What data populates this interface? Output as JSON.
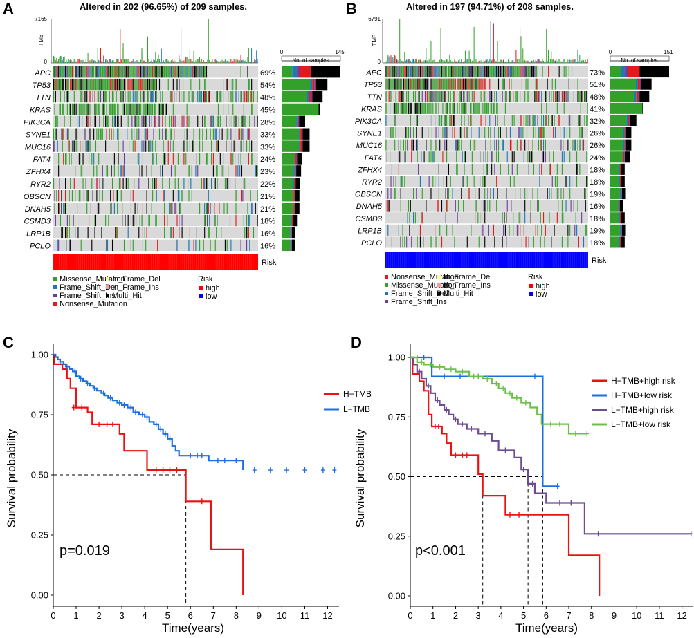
{
  "colors": {
    "Missense_Mutation": "#33a02c",
    "Frame_Shift_Del": "#1f78b4",
    "Frame_Shift_Ins": "#6a3d9a",
    "Nonsense_Mutation": "#e31a1c",
    "In_Frame_Del": "#ffff99",
    "In_Frame_Ins": "#fb9a99",
    "Multi_Hit": "#000000",
    "background": "#d9d9d9",
    "high": "#ff0000",
    "low": "#0000ff"
  },
  "chart_data": [
    {
      "type": "heatmap",
      "panel": "A",
      "title": "Altered in 202 (96.65%) of 209 samples.",
      "tmb_label": "TMB",
      "tmb_ylim": [
        0,
        7165
      ],
      "tmb_ticks": [
        "7165",
        "0"
      ],
      "samples_ticks": [
        "0",
        "145"
      ],
      "samples_label": "No. of samples",
      "risk_label": "Risk",
      "risk_group": "high",
      "genes": [
        "APC",
        "TP53",
        "TTN",
        "KRAS",
        "PIK3CA",
        "SYNE1",
        "MUC16",
        "FAT4",
        "ZFHX4",
        "RYR2",
        "OBSCN",
        "DNAH5",
        "CSMD3",
        "LRP1B",
        "PCLO"
      ],
      "percentages": [
        "69%",
        "54%",
        "48%",
        "45%",
        "28%",
        "33%",
        "33%",
        "24%",
        "23%",
        "22%",
        "21%",
        "21%",
        "18%",
        "16%",
        "16%"
      ],
      "sample_counts": [
        145,
        113,
        101,
        94,
        58,
        69,
        69,
        51,
        48,
        46,
        44,
        44,
        38,
        34,
        34
      ],
      "legend_title": "Risk",
      "legend_types": [
        "Missense_Mutation",
        "Frame_Shift_Del",
        "Frame_Shift_Ins",
        "Nonsense_Mutation",
        "In_Frame_Del",
        "In_Frame_Ins",
        "Multi_Hit"
      ],
      "legend_risk": [
        "high",
        "low"
      ]
    },
    {
      "type": "heatmap",
      "panel": "B",
      "title": "Altered in 197 (94.71%) of 208 samples.",
      "tmb_label": "TMB",
      "tmb_ylim": [
        0,
        6791
      ],
      "tmb_ticks": [
        "6791",
        "0"
      ],
      "samples_ticks": [
        "0",
        "151"
      ],
      "samples_label": "No. of samples",
      "risk_label": "Risk",
      "risk_group": "low",
      "genes": [
        "APC",
        "TP53",
        "TTN",
        "KRAS",
        "PIK3CA",
        "SYNE1",
        "MUC16",
        "FAT4",
        "ZFHX4",
        "RYR2",
        "OBSCN",
        "DNAH5",
        "CSMD3",
        "LRP1B",
        "PCLO"
      ],
      "percentages": [
        "73%",
        "51%",
        "48%",
        "41%",
        "32%",
        "26%",
        "26%",
        "24%",
        "18%",
        "18%",
        "19%",
        "16%",
        "18%",
        "19%",
        "18%"
      ],
      "sample_counts": [
        151,
        106,
        100,
        85,
        67,
        54,
        54,
        50,
        37,
        37,
        40,
        33,
        37,
        40,
        37
      ],
      "legend_title": "Risk",
      "legend_types": [
        "Nonsense_Mutation",
        "Missense_Mutation",
        "Frame_Shift_Del",
        "Frame_Shift_Ins",
        "In_Frame_Del",
        "In_Frame_Ins",
        "Multi_Hit"
      ],
      "legend_risk": [
        "high",
        "low"
      ]
    },
    {
      "type": "line",
      "panel": "C",
      "xlabel": "Time(years)",
      "ylabel": "Survival probability",
      "xlim": [
        0,
        12.5
      ],
      "ylim": [
        0,
        1
      ],
      "xticks": [
        0,
        1,
        2,
        3,
        4,
        5,
        6,
        7,
        8,
        9,
        10,
        11,
        12
      ],
      "yticks": [
        "0.00",
        "0.25",
        "0.50",
        "0.75",
        "1.00"
      ],
      "annotation": "p=0.019",
      "median_line": {
        "y": 0.5,
        "x": 5.8
      },
      "series": [
        {
          "name": "H−TMB",
          "color": "#ee1111",
          "steps": [
            [
              0,
              1.0
            ],
            [
              0.05,
              0.96
            ],
            [
              0.4,
              0.94
            ],
            [
              0.6,
              0.9
            ],
            [
              0.75,
              0.86
            ],
            [
              1.0,
              0.78
            ],
            [
              1.5,
              0.76
            ],
            [
              1.7,
              0.71
            ],
            [
              2.9,
              0.67
            ],
            [
              3.1,
              0.6
            ],
            [
              4.1,
              0.52
            ],
            [
              5.8,
              0.39
            ],
            [
              6.9,
              0.19
            ],
            [
              8.3,
              0.0
            ]
          ],
          "censor": [
            [
              0.9,
              0.78
            ],
            [
              1.25,
              0.78
            ],
            [
              2.0,
              0.71
            ],
            [
              2.35,
              0.71
            ],
            [
              2.6,
              0.71
            ],
            [
              4.5,
              0.52
            ],
            [
              4.8,
              0.52
            ],
            [
              5.1,
              0.52
            ],
            [
              5.4,
              0.52
            ],
            [
              6.5,
              0.39
            ]
          ]
        },
        {
          "name": "L−TMB",
          "color": "#1b6fe0",
          "steps": [
            [
              0,
              1.0
            ],
            [
              0.1,
              0.99
            ],
            [
              0.2,
              0.98
            ],
            [
              0.3,
              0.97
            ],
            [
              0.45,
              0.96
            ],
            [
              0.55,
              0.95
            ],
            [
              0.7,
              0.94
            ],
            [
              0.85,
              0.93
            ],
            [
              1.0,
              0.91
            ],
            [
              1.15,
              0.9
            ],
            [
              1.3,
              0.89
            ],
            [
              1.45,
              0.88
            ],
            [
              1.6,
              0.87
            ],
            [
              1.75,
              0.86
            ],
            [
              1.9,
              0.85
            ],
            [
              2.1,
              0.84
            ],
            [
              2.25,
              0.83
            ],
            [
              2.4,
              0.82
            ],
            [
              2.6,
              0.81
            ],
            [
              2.8,
              0.8
            ],
            [
              3.0,
              0.79
            ],
            [
              3.25,
              0.78
            ],
            [
              3.5,
              0.76
            ],
            [
              3.75,
              0.75
            ],
            [
              4.0,
              0.74
            ],
            [
              4.2,
              0.72
            ],
            [
              4.4,
              0.71
            ],
            [
              4.6,
              0.69
            ],
            [
              4.8,
              0.67
            ],
            [
              5.0,
              0.65
            ],
            [
              5.2,
              0.62
            ],
            [
              5.35,
              0.6
            ],
            [
              5.5,
              0.58
            ],
            [
              6.8,
              0.56
            ],
            [
              8.3,
              0.52
            ]
          ],
          "censor": [
            [
              0.3,
              0.97
            ],
            [
              0.6,
              0.95
            ],
            [
              0.95,
              0.93
            ],
            [
              1.2,
              0.9
            ],
            [
              1.5,
              0.88
            ],
            [
              1.8,
              0.86
            ],
            [
              2.2,
              0.84
            ],
            [
              2.5,
              0.82
            ],
            [
              2.9,
              0.8
            ],
            [
              3.1,
              0.79
            ],
            [
              3.4,
              0.78
            ],
            [
              3.6,
              0.76
            ],
            [
              3.9,
              0.75
            ],
            [
              4.1,
              0.74
            ],
            [
              4.5,
              0.71
            ],
            [
              4.7,
              0.69
            ],
            [
              4.9,
              0.67
            ],
            [
              5.1,
              0.65
            ],
            [
              6.0,
              0.58
            ],
            [
              6.3,
              0.58
            ],
            [
              6.5,
              0.58
            ],
            [
              7.2,
              0.56
            ],
            [
              7.5,
              0.56
            ],
            [
              8.0,
              0.56
            ],
            [
              8.8,
              0.52
            ],
            [
              9.5,
              0.52
            ],
            [
              10.2,
              0.52
            ],
            [
              11.0,
              0.52
            ],
            [
              11.8,
              0.52
            ],
            [
              12.3,
              0.52
            ]
          ]
        }
      ]
    },
    {
      "type": "line",
      "panel": "D",
      "xlabel": "Time(years)",
      "ylabel": "Survival probability",
      "xlim": [
        0,
        12.5
      ],
      "ylim": [
        0,
        1
      ],
      "xticks": [
        0,
        1,
        2,
        3,
        4,
        5,
        6,
        7,
        8,
        9,
        10,
        11,
        12
      ],
      "yticks": [
        "0.00",
        "0.25",
        "0.50",
        "0.75",
        "1.00"
      ],
      "annotation": "p<0.001",
      "median_lines": [
        {
          "y": 0.5,
          "x": 3.2
        },
        {
          "y": 0.5,
          "x": 5.2
        },
        {
          "y": 0.5,
          "x": 5.85
        }
      ],
      "series": [
        {
          "name": "H−TMB+high risk",
          "color": "#ee1111",
          "steps": [
            [
              0,
              1.0
            ],
            [
              0.1,
              0.93
            ],
            [
              0.4,
              0.9
            ],
            [
              0.6,
              0.86
            ],
            [
              0.8,
              0.76
            ],
            [
              0.95,
              0.71
            ],
            [
              1.4,
              0.68
            ],
            [
              1.6,
              0.64
            ],
            [
              1.8,
              0.59
            ],
            [
              3.0,
              0.51
            ],
            [
              3.2,
              0.42
            ],
            [
              4.2,
              0.34
            ],
            [
              5.85,
              0.34
            ],
            [
              7.0,
              0.17
            ],
            [
              8.35,
              0.0
            ]
          ],
          "censor": [
            [
              1.1,
              0.71
            ],
            [
              1.25,
              0.71
            ],
            [
              2.0,
              0.59
            ],
            [
              2.3,
              0.59
            ],
            [
              2.5,
              0.59
            ],
            [
              4.4,
              0.34
            ],
            [
              4.8,
              0.34
            ]
          ]
        },
        {
          "name": "H−TMB+low risk",
          "color": "#1b6fe0",
          "steps": [
            [
              0,
              1.0
            ],
            [
              0.95,
              0.92
            ],
            [
              5.85,
              0.46
            ],
            [
              6.5,
              0.46
            ]
          ],
          "censor": [
            [
              0.3,
              1.0
            ],
            [
              0.6,
              1.0
            ],
            [
              1.5,
              0.92
            ],
            [
              2.2,
              0.92
            ],
            [
              3.0,
              0.92
            ],
            [
              5.5,
              0.92
            ],
            [
              6.5,
              0.46
            ]
          ]
        },
        {
          "name": "L−TMB+high risk",
          "color": "#6a4c93",
          "steps": [
            [
              0,
              1.0
            ],
            [
              0.15,
              0.97
            ],
            [
              0.3,
              0.94
            ],
            [
              0.5,
              0.91
            ],
            [
              0.7,
              0.88
            ],
            [
              0.9,
              0.85
            ],
            [
              1.1,
              0.82
            ],
            [
              1.3,
              0.8
            ],
            [
              1.5,
              0.78
            ],
            [
              1.7,
              0.76
            ],
            [
              1.9,
              0.74
            ],
            [
              2.1,
              0.72
            ],
            [
              2.5,
              0.7
            ],
            [
              3.0,
              0.68
            ],
            [
              3.6,
              0.65
            ],
            [
              3.9,
              0.61
            ],
            [
              4.6,
              0.58
            ],
            [
              4.9,
              0.53
            ],
            [
              5.2,
              0.47
            ],
            [
              5.5,
              0.43
            ],
            [
              6.0,
              0.39
            ],
            [
              7.7,
              0.26
            ],
            [
              12.4,
              0.26
            ]
          ],
          "censor": [
            [
              0.4,
              0.94
            ],
            [
              0.8,
              0.88
            ],
            [
              1.2,
              0.82
            ],
            [
              1.6,
              0.78
            ],
            [
              2.0,
              0.74
            ],
            [
              2.3,
              0.72
            ],
            [
              2.7,
              0.7
            ],
            [
              3.3,
              0.68
            ],
            [
              4.2,
              0.61
            ],
            [
              5.0,
              0.53
            ],
            [
              5.4,
              0.47
            ],
            [
              6.6,
              0.39
            ],
            [
              7.1,
              0.39
            ],
            [
              8.3,
              0.26
            ],
            [
              12.4,
              0.26
            ]
          ]
        },
        {
          "name": "L−TMB+low risk",
          "color": "#6cc04a",
          "steps": [
            [
              0,
              1.0
            ],
            [
              0.3,
              0.98
            ],
            [
              0.6,
              0.97
            ],
            [
              1.0,
              0.96
            ],
            [
              1.5,
              0.95
            ],
            [
              2.0,
              0.94
            ],
            [
              2.6,
              0.92
            ],
            [
              3.2,
              0.91
            ],
            [
              3.6,
              0.89
            ],
            [
              3.9,
              0.87
            ],
            [
              4.2,
              0.85
            ],
            [
              4.5,
              0.83
            ],
            [
              4.9,
              0.81
            ],
            [
              5.3,
              0.79
            ],
            [
              5.6,
              0.76
            ],
            [
              5.8,
              0.72
            ],
            [
              7.0,
              0.68
            ],
            [
              7.8,
              0.68
            ]
          ],
          "censor": [
            [
              0.5,
              0.98
            ],
            [
              0.9,
              0.97
            ],
            [
              1.3,
              0.96
            ],
            [
              1.8,
              0.95
            ],
            [
              2.3,
              0.94
            ],
            [
              2.8,
              0.92
            ],
            [
              3.0,
              0.92
            ],
            [
              3.4,
              0.91
            ],
            [
              3.8,
              0.89
            ],
            [
              4.1,
              0.87
            ],
            [
              4.4,
              0.85
            ],
            [
              4.7,
              0.83
            ],
            [
              5.1,
              0.81
            ],
            [
              6.2,
              0.72
            ],
            [
              6.6,
              0.72
            ],
            [
              7.3,
              0.68
            ],
            [
              7.8,
              0.68
            ]
          ]
        }
      ]
    }
  ]
}
